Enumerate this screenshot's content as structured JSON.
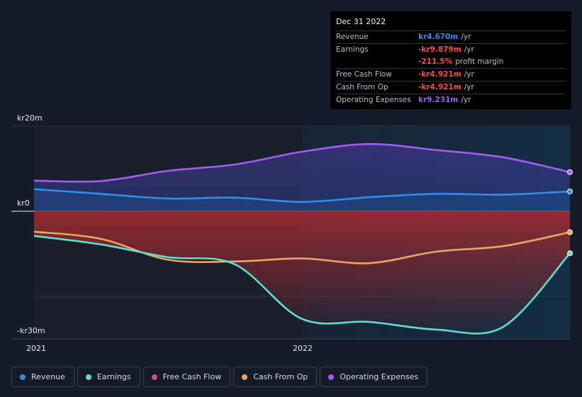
{
  "chart_data": {
    "type": "area",
    "ylim": [
      -30,
      20
    ],
    "y_ticks": [
      {
        "value": 20,
        "label": "kr20m"
      },
      {
        "value": 0,
        "label": "kr0"
      },
      {
        "value": -30,
        "label": "-kr30m"
      }
    ],
    "x_ticks": [
      {
        "value": 2021.0,
        "label": "2021"
      },
      {
        "value": 2022.0,
        "label": "2022"
      }
    ],
    "xlim": [
      2021.0,
      2023.0
    ],
    "past_start": 2022.0,
    "series": [
      {
        "name": "Operating Expenses",
        "color": "#a25cf0",
        "x": [
          2021.0,
          2021.25,
          2021.5,
          2021.75,
          2022.0,
          2022.25,
          2022.5,
          2022.75,
          2023.0
        ],
        "y": [
          7.2,
          7.1,
          9.5,
          11.0,
          14.0,
          15.8,
          14.4,
          12.7,
          9.2
        ]
      },
      {
        "name": "Revenue",
        "color": "#2f8fe8",
        "x": [
          2021.0,
          2021.25,
          2021.5,
          2021.75,
          2022.0,
          2022.25,
          2022.5,
          2022.75,
          2023.0
        ],
        "y": [
          5.2,
          4.1,
          3.0,
          3.2,
          2.2,
          3.3,
          4.1,
          3.9,
          4.67
        ]
      },
      {
        "name": "Earnings",
        "color": "#5ce0cc",
        "x": [
          2021.0,
          2021.25,
          2021.5,
          2021.75,
          2022.0,
          2022.25,
          2022.5,
          2022.75,
          2023.0
        ],
        "y": [
          -5.8,
          -7.8,
          -10.8,
          -12.5,
          -25.3,
          -26.0,
          -27.8,
          -27.2,
          -9.879
        ]
      },
      {
        "name": "Cash From Op",
        "color": "#eaa660",
        "x": [
          2021.0,
          2021.25,
          2021.5,
          2021.75,
          2022.0,
          2022.25,
          2022.5,
          2022.75,
          2023.0
        ],
        "y": [
          -4.8,
          -6.5,
          -11.4,
          -11.8,
          -11.1,
          -12.2,
          -9.5,
          -8.2,
          -4.921
        ]
      }
    ],
    "tooltip": {
      "date": "Dec 31 2022",
      "rows": [
        {
          "label": "Revenue",
          "value": "kr4.670m",
          "unit": "/yr",
          "color": "#2f8fe8"
        },
        {
          "label": "Earnings",
          "value": "-kr9.879m",
          "unit": "/yr",
          "color": "#ff4a4a"
        },
        {
          "label": "",
          "value": "-211.5%",
          "unit": "profit margin",
          "color": "#ff4a4a"
        },
        {
          "label": "Free Cash Flow",
          "value": "-kr4.921m",
          "unit": "/yr",
          "color": "#ff4a4a"
        },
        {
          "label": "Cash From Op",
          "value": "-kr4.921m",
          "unit": "/yr",
          "color": "#ff4a4a"
        },
        {
          "label": "Operating Expenses",
          "value": "kr9.231m",
          "unit": "/yr",
          "color": "#a25cf0"
        }
      ]
    },
    "legend": [
      {
        "label": "Revenue",
        "color": "#2f8fe8"
      },
      {
        "label": "Earnings",
        "color": "#5ce0cc"
      },
      {
        "label": "Free Cash Flow",
        "color": "#d64c8a"
      },
      {
        "label": "Cash From Op",
        "color": "#eaa660"
      },
      {
        "label": "Operating Expenses",
        "color": "#a25cf0"
      }
    ]
  }
}
